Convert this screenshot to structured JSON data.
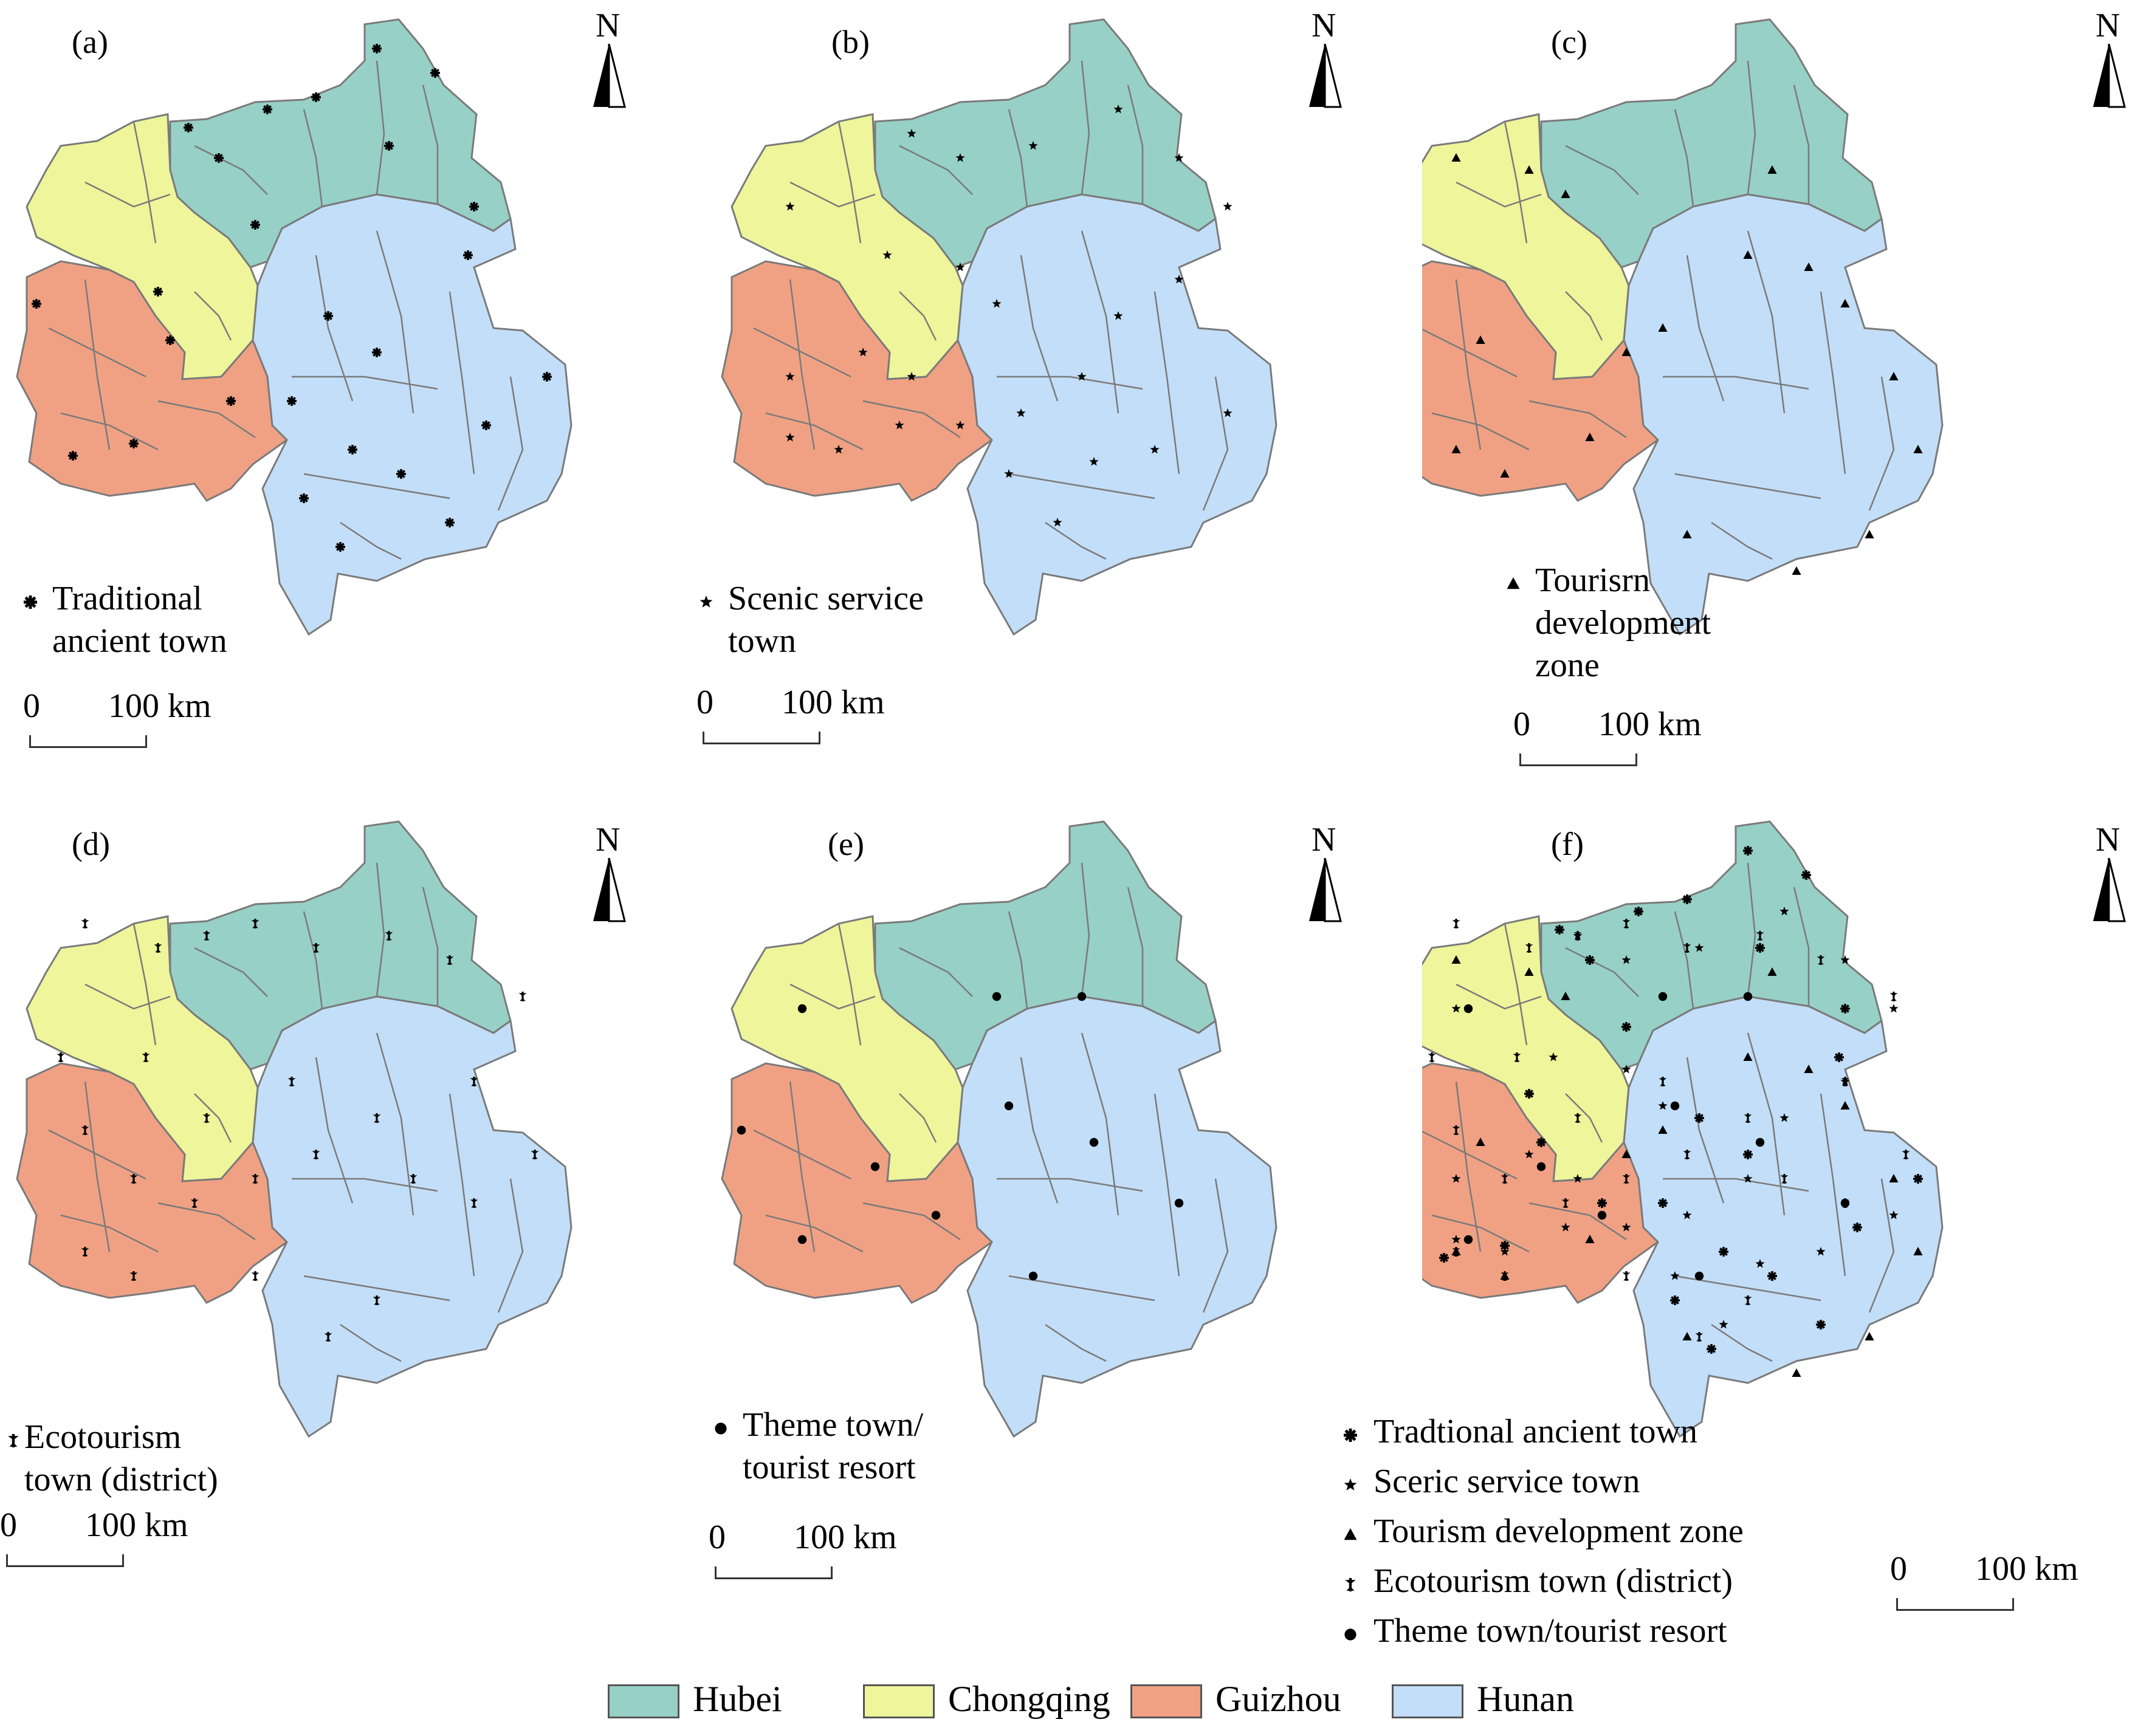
{
  "colors": {
    "hubei": "#97d0c6",
    "chongqing": "#eef59a",
    "guizhou": "#f0a184",
    "hunan": "#c3def8",
    "border": "#7a7a7a"
  },
  "north_label": "N",
  "scale": {
    "zero": "0",
    "distance": "100 km"
  },
  "panels": [
    {
      "label": "(a)",
      "legend_lines": [
        "Traditional",
        "ancient town"
      ],
      "symbol": "asterisk"
    },
    {
      "label": "(b)",
      "legend_lines": [
        "Scenic service",
        "town"
      ],
      "symbol": "star"
    },
    {
      "label": "(c)",
      "legend_lines": [
        "Tourisrn",
        "development",
        "zone"
      ],
      "symbol": "triangle"
    },
    {
      "label": "(d)",
      "legend_lines": [
        "Ecotourism",
        "town (district)"
      ],
      "symbol": "eco"
    },
    {
      "label": "(e)",
      "legend_lines": [
        "Theme town/",
        "tourist resort"
      ],
      "symbol": "dot"
    },
    {
      "label": "(f)",
      "legend_lines": [],
      "symbol": "mixed"
    }
  ],
  "combined_legend": [
    {
      "symbol": "asterisk",
      "label": "Tradtional ancient town"
    },
    {
      "symbol": "star",
      "label": "Sceric service town"
    },
    {
      "symbol": "triangle",
      "label": "Tourism development zone"
    },
    {
      "symbol": "eco",
      "label": "Ecotourism town (district)"
    },
    {
      "symbol": "dot",
      "label": "Theme town/tourist resort"
    }
  ],
  "region_legend": [
    {
      "name": "Hubei",
      "color": "#97d0c6"
    },
    {
      "name": "Chongqing",
      "color": "#eef59a"
    },
    {
      "name": "Guizhou",
      "color": "#f0a184"
    },
    {
      "name": "Hunan",
      "color": "#c3def8"
    }
  ]
}
